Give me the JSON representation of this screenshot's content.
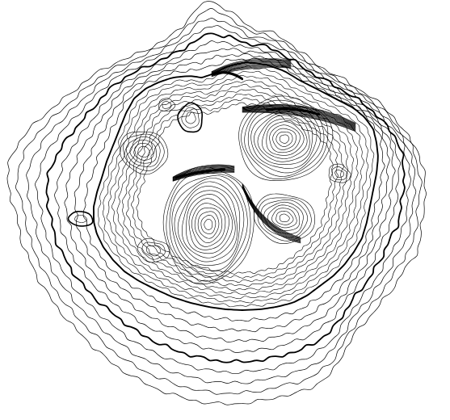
{
  "map": {
    "type": "topographic-contour-map",
    "background": "#ffffff",
    "line_color": "#000000",
    "labels": [],
    "features": {
      "contour_families": 6,
      "index_contours_bold": true
    }
  }
}
